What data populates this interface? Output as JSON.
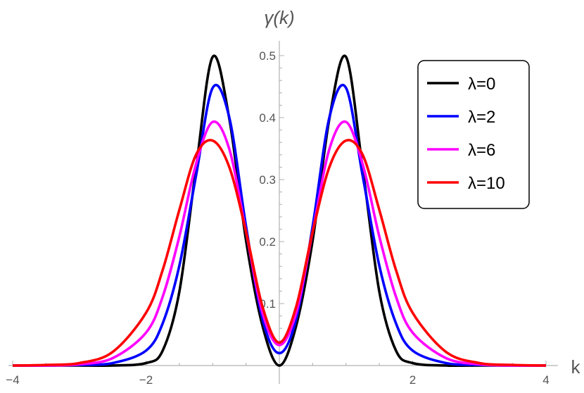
{
  "chart_data": {
    "type": "line",
    "title": "",
    "xlabel": "k",
    "ylabel": "γ(k)",
    "xlim": [
      -4,
      4
    ],
    "ylim": [
      0,
      0.5
    ],
    "x_ticks": [
      -4,
      -2,
      2,
      4
    ],
    "x_tick_labels": [
      "−4",
      "−2",
      "2",
      "4"
    ],
    "y_ticks": [
      0.1,
      0.2,
      0.3,
      0.4,
      0.5
    ],
    "y_tick_labels": [
      "0.1",
      "0.2",
      "0.3",
      "0.4",
      "0.5"
    ],
    "grid": false,
    "legend_position": "top-right",
    "x": [
      -4,
      -3.5,
      -3,
      -2.5,
      -2,
      -1.75,
      -1.5,
      -1.25,
      -1,
      -0.75,
      -0.5,
      -0.25,
      0,
      0.25,
      0.5,
      0.75,
      1,
      1.25,
      1.5,
      1.75,
      2,
      2.5,
      3,
      3.5,
      4
    ],
    "series": [
      {
        "name": "λ=0",
        "color": "#000000",
        "values": [
          0,
          0,
          0,
          0,
          0.004,
          0.024,
          0.119,
          0.318,
          0.498,
          0.398,
          0.202,
          0.063,
          0,
          0.063,
          0.202,
          0.398,
          0.498,
          0.318,
          0.119,
          0.024,
          0.004,
          0,
          0,
          0,
          0
        ]
      },
      {
        "name": "λ=2",
        "color": "#0000ff",
        "values": [
          0,
          0,
          0.001,
          0.004,
          0.024,
          0.068,
          0.161,
          0.306,
          0.448,
          0.4,
          0.225,
          0.074,
          0.02,
          0.074,
          0.225,
          0.4,
          0.448,
          0.306,
          0.161,
          0.068,
          0.024,
          0.004,
          0.001,
          0,
          0
        ]
      },
      {
        "name": "λ=6",
        "color": "#ff00ff",
        "values": [
          0,
          0,
          0.002,
          0.012,
          0.053,
          0.111,
          0.208,
          0.325,
          0.393,
          0.349,
          0.216,
          0.084,
          0.033,
          0.084,
          0.216,
          0.349,
          0.393,
          0.325,
          0.208,
          0.111,
          0.053,
          0.012,
          0.002,
          0,
          0
        ]
      },
      {
        "name": "λ=10",
        "color": "#ff0000",
        "values": [
          0,
          0.001,
          0.004,
          0.022,
          0.085,
          0.154,
          0.251,
          0.34,
          0.363,
          0.32,
          0.216,
          0.094,
          0.037,
          0.094,
          0.216,
          0.32,
          0.363,
          0.34,
          0.251,
          0.154,
          0.085,
          0.022,
          0.004,
          0.001,
          0
        ]
      }
    ]
  }
}
